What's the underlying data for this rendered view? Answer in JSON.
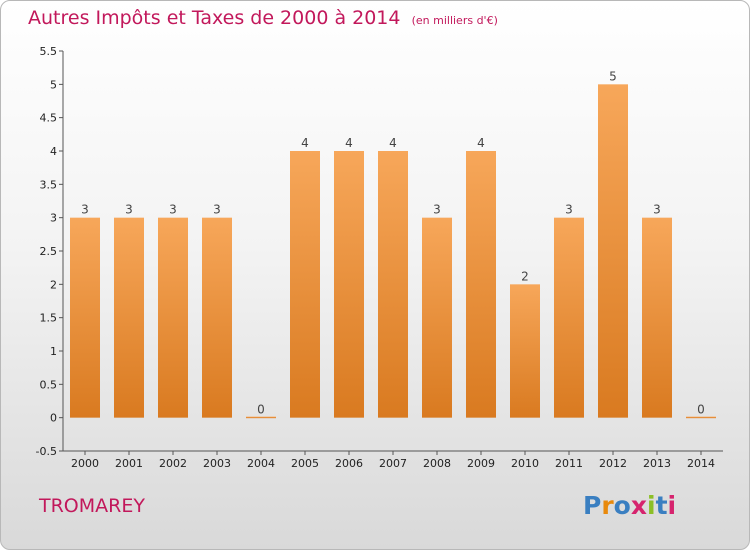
{
  "title": "Autres Impôts et Taxes de 2000 à 2014",
  "unit": "(en milliers d'€)",
  "commune": "TROMAREY",
  "logo": {
    "text": "Proxiti",
    "colors": [
      "#3a7fc1",
      "#e8890c",
      "#3a7fc1",
      "#d6246e",
      "#8cbf26",
      "#3a7fc1",
      "#d6246e"
    ]
  },
  "colors": {
    "bar_top": "#f7a75a",
    "bar_bottom": "#d97a20",
    "axis": "#555555",
    "grid": "#aaaaaa",
    "accent": "#c2185b"
  },
  "chart_data": {
    "type": "bar",
    "categories": [
      "2000",
      "2001",
      "2002",
      "2003",
      "2004",
      "2005",
      "2006",
      "2007",
      "2008",
      "2009",
      "2010",
      "2011",
      "2012",
      "2013",
      "2014"
    ],
    "values": [
      3,
      3,
      3,
      3,
      0,
      4,
      4,
      4,
      3,
      4,
      2,
      3,
      5,
      3,
      0
    ],
    "data_labels": [
      "3",
      "3",
      "3",
      "3",
      "0",
      "4",
      "4",
      "4",
      "3",
      "4",
      "2",
      "3",
      "5",
      "3",
      "0"
    ],
    "yticks": [
      "-0.5",
      "0",
      "0.5",
      "1",
      "1.5",
      "2",
      "2.5",
      "3",
      "3.5",
      "4",
      "4.5",
      "5",
      "5.5"
    ],
    "ylim": [
      -0.5,
      5.5
    ],
    "grid": false,
    "title": "Autres Impôts et Taxes de 2000 à 2014",
    "xlabel": "",
    "ylabel": ""
  }
}
